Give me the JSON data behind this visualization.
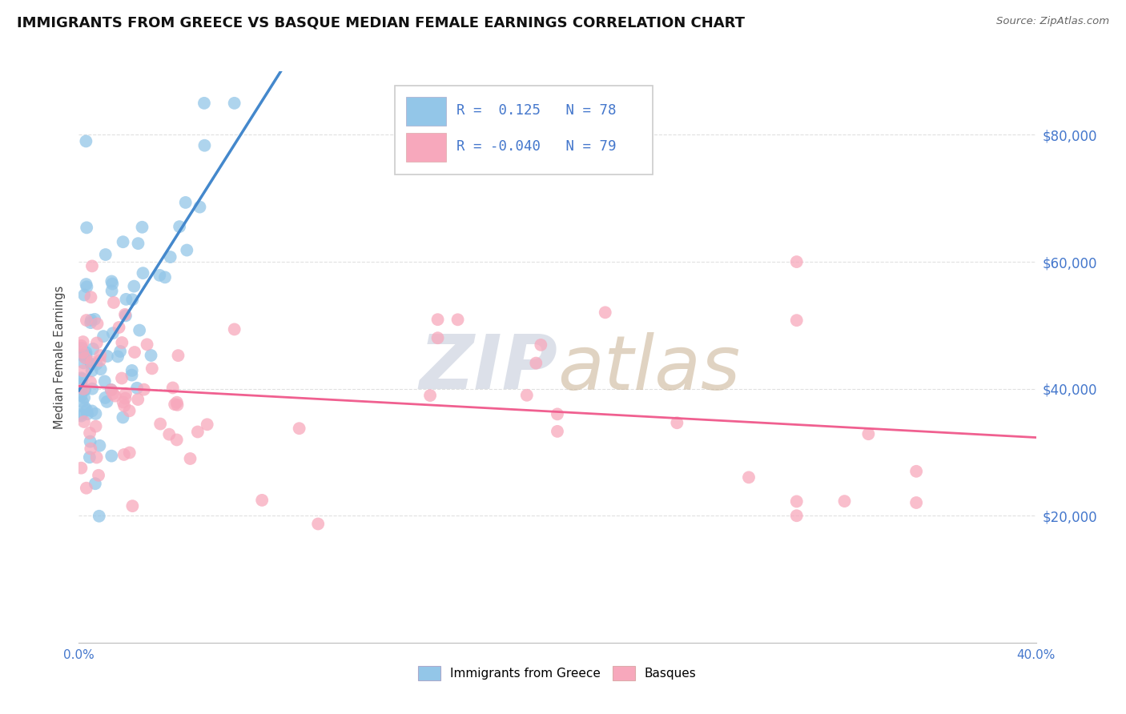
{
  "title": "IMMIGRANTS FROM GREECE VS BASQUE MEDIAN FEMALE EARNINGS CORRELATION CHART",
  "source": "Source: ZipAtlas.com",
  "ylabel": "Median Female Earnings",
  "xlim": [
    0.0,
    0.4
  ],
  "ylim": [
    0,
    90000
  ],
  "yticks": [
    20000,
    40000,
    60000,
    80000
  ],
  "ytick_labels": [
    "$20,000",
    "$40,000",
    "$60,000",
    "$80,000"
  ],
  "xtick_labels": [
    "0.0%",
    "40.0%"
  ],
  "xtick_vals": [
    0.0,
    0.4
  ],
  "series1_label": "Immigrants from Greece",
  "series1_R": 0.125,
  "series1_N": 78,
  "series2_label": "Basques",
  "series2_R": -0.04,
  "series2_N": 79,
  "color1": "#93c6e8",
  "color2": "#f7a8bc",
  "trend1_color": "#4488cc",
  "trend2_color": "#f06090",
  "dashed_color": "#99bbdd",
  "bg_color": "#ffffff",
  "grid_color": "#cccccc",
  "title_fontsize": 13,
  "right_tick_color": "#4477cc",
  "legend_text_color": "#4477cc",
  "watermark_zip_color": "#c0c8d8",
  "watermark_atlas_color": "#c8b090"
}
